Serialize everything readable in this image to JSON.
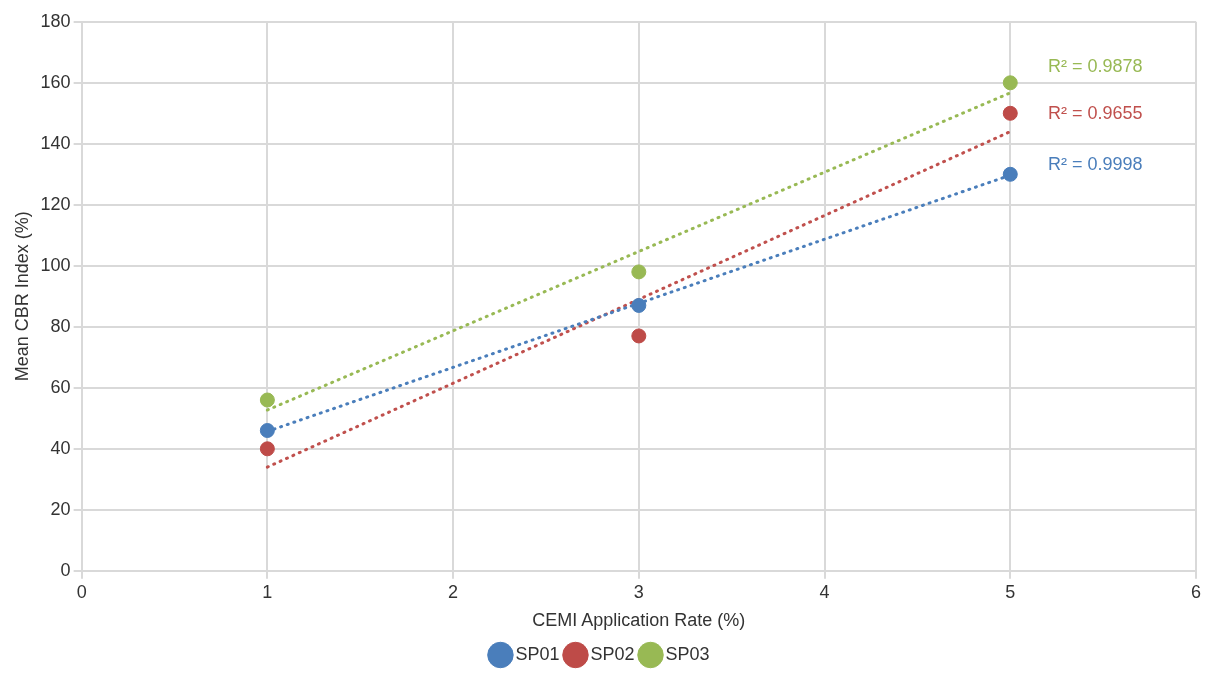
{
  "chart_data": {
    "type": "scatter",
    "xlabel": "CEMI Application Rate (%)",
    "ylabel": "Mean CBR Index (%)",
    "x": [
      1,
      3,
      5
    ],
    "series": [
      {
        "name": "SP01",
        "color": "#4a7ebb",
        "values": [
          46,
          87,
          130
        ]
      },
      {
        "name": "SP02",
        "color": "#be4b48",
        "values": [
          40,
          77,
          150
        ]
      },
      {
        "name": "SP03",
        "color": "#98b954",
        "values": [
          56,
          98,
          160
        ]
      },
      {
        "type": "line",
        "color": "#4a7ebb",
        "values": [
          45.7,
          87.7,
          129.7
        ],
        "line_style": "dotted",
        "marker": "none"
      },
      {
        "type": "line",
        "color": "#c0504d",
        "values": [
          34,
          89,
          144
        ],
        "line_style": "dotted",
        "marker": "none"
      },
      {
        "type": "line",
        "color": "#98b954",
        "values": [
          52.7,
          104.7,
          156.7
        ],
        "line_style": "dotted",
        "marker": "none"
      }
    ],
    "annotations": [
      "R² = 0.9998",
      "R² = 0.9655",
      "R² = 0.9878"
    ],
    "xlim": [
      0,
      6
    ],
    "xticks": [
      0,
      1,
      2,
      3,
      4,
      5,
      6
    ],
    "ylim": [
      0,
      180
    ],
    "yticks": [
      0,
      20,
      40,
      60,
      80,
      100,
      120,
      140,
      160,
      180
    ],
    "grid": true,
    "legend": "bottom",
    "marker": "circle"
  }
}
